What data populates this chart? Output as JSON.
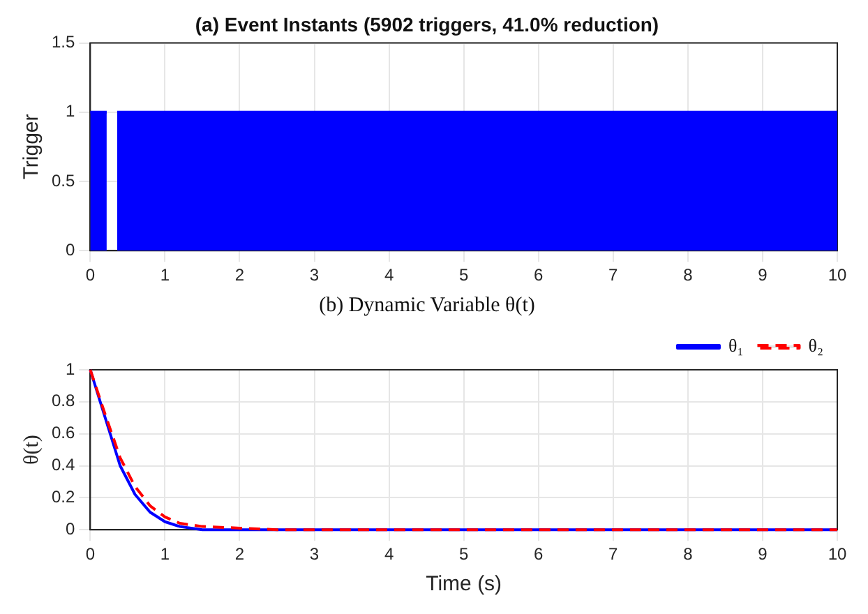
{
  "chart_data": [
    {
      "type": "area",
      "title": "(a) Event Instants (5902 triggers, 41.0% reduction)",
      "ylabel": "Trigger",
      "xlim": [
        0,
        10
      ],
      "xticks": [
        0,
        1,
        2,
        3,
        4,
        5,
        6,
        7,
        8,
        9,
        10
      ],
      "ylim": [
        0,
        1.5
      ],
      "yticks": [
        0,
        0.5,
        1,
        1.5
      ],
      "grid": true,
      "series": [
        {
          "color": "#0000ff",
          "x": [
            0,
            0.22,
            0.29,
            0.36,
            10
          ],
          "values": [
            1,
            1,
            null,
            1,
            1
          ]
        }
      ]
    },
    {
      "type": "line",
      "title": "(b) Dynamic Variable θ(t)",
      "xlabel": "Time (s)",
      "ylabel": "θ(t)",
      "xlim": [
        0,
        10
      ],
      "xticks": [
        0,
        1,
        2,
        3,
        4,
        5,
        6,
        7,
        8,
        9,
        10
      ],
      "ylim": [
        0,
        1
      ],
      "yticks": [
        0,
        0.2,
        0.4,
        0.6,
        0.8,
        1
      ],
      "grid": true,
      "legend": "top right",
      "series": [
        {
          "name": "θ₁",
          "color": "#0000ff",
          "line_style": "solid",
          "x": [
            0,
            0.2,
            0.4,
            0.6,
            0.8,
            1.0,
            1.2,
            1.5,
            2,
            10
          ],
          "values": [
            1,
            0.7,
            0.4,
            0.22,
            0.11,
            0.05,
            0.02,
            0,
            0,
            0
          ]
        },
        {
          "name": "θ₂",
          "color": "#ff0000",
          "line_style": "dashed",
          "x": [
            0,
            0.2,
            0.4,
            0.6,
            0.8,
            1.0,
            1.2,
            1.5,
            2,
            2.5,
            10
          ],
          "values": [
            1,
            0.72,
            0.45,
            0.27,
            0.15,
            0.08,
            0.04,
            0.02,
            0.01,
            0,
            0
          ]
        }
      ]
    }
  ]
}
